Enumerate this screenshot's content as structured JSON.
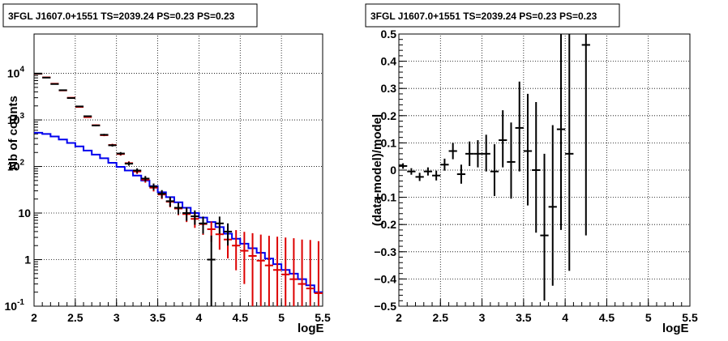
{
  "chart_data": [
    {
      "type": "line",
      "title": "3FGL J1607.0+1551 TS=2039.24 PS=0.23 PS=0.23",
      "xlabel": "logE",
      "ylabel": "Nb of counts",
      "xlim": [
        2,
        5.5
      ],
      "ylim": [
        0.1,
        70000
      ],
      "yscale": "log",
      "grid": true,
      "x_ticks": [
        "2",
        "2.5",
        "3",
        "3.5",
        "4",
        "4.5",
        "5",
        "5.5"
      ],
      "y_ticks": [
        "10^{-1}",
        "1",
        "10",
        "10^{2}",
        "10^{3}",
        "10^{4}"
      ],
      "bin_edges": [
        2.0,
        2.1,
        2.2,
        2.3,
        2.4,
        2.5,
        2.6,
        2.7,
        2.8,
        2.9,
        3.0,
        3.1,
        3.2,
        3.3,
        3.4,
        3.5,
        3.6,
        3.7,
        3.8,
        3.9,
        4.0,
        4.1,
        4.2,
        4.3,
        4.4,
        4.5,
        4.6,
        4.7,
        4.8,
        4.9,
        5.0,
        5.1,
        5.2,
        5.3,
        5.4,
        5.5
      ],
      "series": [
        {
          "name": "",
          "style": "steps",
          "color": "#0000ee",
          "values": [
            530,
            500,
            440,
            380,
            320,
            270,
            220,
            180,
            150,
            120,
            98,
            82,
            64,
            50,
            38,
            28,
            22,
            17,
            13,
            10,
            8,
            6.4,
            5,
            3.6,
            2.8,
            2.2,
            1.75,
            1.4,
            1.05,
            0.8,
            0.6,
            0.5,
            0.38,
            0.28,
            0.2
          ]
        },
        {
          "name": "",
          "style": "errorbar",
          "color": "#dd0000",
          "x": [
            2.05,
            2.15,
            2.25,
            2.35,
            2.45,
            2.55,
            2.65,
            2.75,
            2.85,
            2.95,
            3.05,
            3.15,
            3.25,
            3.35,
            3.45,
            3.55,
            3.65,
            3.75,
            3.85,
            3.95,
            4.05,
            4.15,
            4.25,
            4.35,
            4.45,
            4.55,
            4.65,
            4.75,
            4.85,
            4.95,
            5.05,
            5.15,
            5.25,
            5.35,
            5.45
          ],
          "values": [
            9800,
            8200,
            6000,
            4300,
            3000,
            1900,
            1150,
            770,
            470,
            290,
            185,
            118,
            78,
            52,
            35,
            25,
            17.5,
            12.5,
            9.5,
            7.5,
            5.8,
            4.5,
            3.5,
            2.7,
            2.0,
            1.55,
            1.2,
            0.95,
            0.75,
            0.6,
            0.48,
            0.38,
            0.3,
            0.24,
            0.19
          ],
          "err_low": [
            100,
            90,
            78,
            66,
            55,
            44,
            34,
            28,
            22,
            17,
            13.6,
            10.9,
            8.8,
            7.2,
            5.9,
            5.0,
            4.2,
            3.5,
            3.1,
            2.7,
            2.4,
            2.1,
            1.87,
            1.64,
            1.41,
            1.25,
            1.1,
            0.94,
            0.74,
            0.59,
            0.47,
            0.37,
            0.29,
            0.23,
            0.18
          ],
          "err_high": [
            100,
            90,
            78,
            66,
            55,
            44,
            34,
            28,
            22,
            17,
            13.6,
            10.9,
            8.8,
            7.2,
            5.9,
            5.0,
            4.2,
            3.5,
            3.1,
            2.7,
            2.4,
            2.1,
            2.3,
            2.1,
            2.3,
            2.4,
            2.5,
            2.5,
            2.5,
            2.5,
            2.5,
            2.5,
            2.4,
            2.4,
            2.3
          ]
        },
        {
          "name": "",
          "style": "crosses",
          "color": "#000000",
          "x": [
            2.05,
            2.15,
            2.25,
            2.35,
            2.45,
            2.55,
            2.65,
            2.75,
            2.85,
            2.95,
            3.05,
            3.15,
            3.25,
            3.35,
            3.45,
            3.55,
            3.65,
            3.75,
            3.85,
            3.95,
            4.05,
            4.15,
            4.25,
            4.35
          ],
          "values": [
            9900,
            8100,
            5900,
            4350,
            2950,
            1950,
            1200,
            760,
            480,
            285,
            190,
            115,
            82,
            55,
            37,
            26,
            18,
            13,
            10,
            8.5,
            6,
            1,
            6,
            4
          ],
          "err_low": [
            100,
            90,
            77,
            66,
            54,
            44,
            35,
            28,
            22,
            17,
            13.8,
            10.7,
            9.1,
            7.4,
            6.1,
            5.1,
            4.2,
            3.6,
            3.2,
            2.9,
            2.4,
            0.9,
            2.4,
            2.0
          ],
          "err_high": [
            100,
            90,
            77,
            66,
            54,
            44,
            35,
            28,
            22,
            17,
            13.8,
            10.7,
            9.1,
            7.4,
            6.1,
            5.1,
            4.2,
            3.6,
            3.2,
            2.9,
            2.4,
            2.3,
            2.4,
            2.0
          ]
        }
      ]
    },
    {
      "type": "scatter",
      "title": "3FGL J1607.0+1551 TS=2039.24 PS=0.23 PS=0.23",
      "xlabel": "logE",
      "ylabel": "(data-model)/model",
      "xlim": [
        2,
        5.5
      ],
      "ylim": [
        -0.5,
        0.5
      ],
      "grid": true,
      "x_ticks": [
        "2",
        "2.5",
        "3",
        "3.5",
        "4",
        "4.5",
        "5",
        "5.5"
      ],
      "y_ticks": [
        "−0.5",
        "−0.4",
        "−0.3",
        "−0.2",
        "−0.1",
        "0",
        "0.1",
        "0.2",
        "0.3",
        "0.4",
        "0.5"
      ],
      "series": [
        {
          "name": "",
          "color": "#000000",
          "x": [
            2.05,
            2.15,
            2.25,
            2.35,
            2.45,
            2.55,
            2.65,
            2.75,
            2.85,
            2.95,
            3.05,
            3.15,
            3.25,
            3.35,
            3.45,
            3.55,
            3.65,
            3.75,
            3.85,
            3.95,
            4.05,
            4.25
          ],
          "values": [
            0.015,
            -0.005,
            -0.025,
            -0.005,
            -0.02,
            0.02,
            0.07,
            -0.015,
            0.06,
            0.06,
            0.06,
            -0.005,
            0.11,
            0.03,
            0.155,
            0.07,
            0.0,
            -0.24,
            -0.135,
            0.15,
            0.06,
            0.46
          ],
          "err_low": [
            0.01,
            0.012,
            0.015,
            0.015,
            0.018,
            0.022,
            0.03,
            0.035,
            0.045,
            0.05,
            0.065,
            0.09,
            0.1,
            0.135,
            0.16,
            0.2,
            0.23,
            0.24,
            0.29,
            0.37,
            0.43,
            0.7
          ],
          "err_high": [
            0.01,
            0.012,
            0.015,
            0.015,
            0.018,
            0.022,
            0.03,
            0.035,
            0.045,
            0.05,
            0.07,
            0.1,
            0.11,
            0.145,
            0.17,
            0.21,
            0.25,
            0.3,
            0.3,
            0.4,
            0.44,
            0.25
          ],
          "x_halfwidth": 0.05
        }
      ]
    }
  ]
}
